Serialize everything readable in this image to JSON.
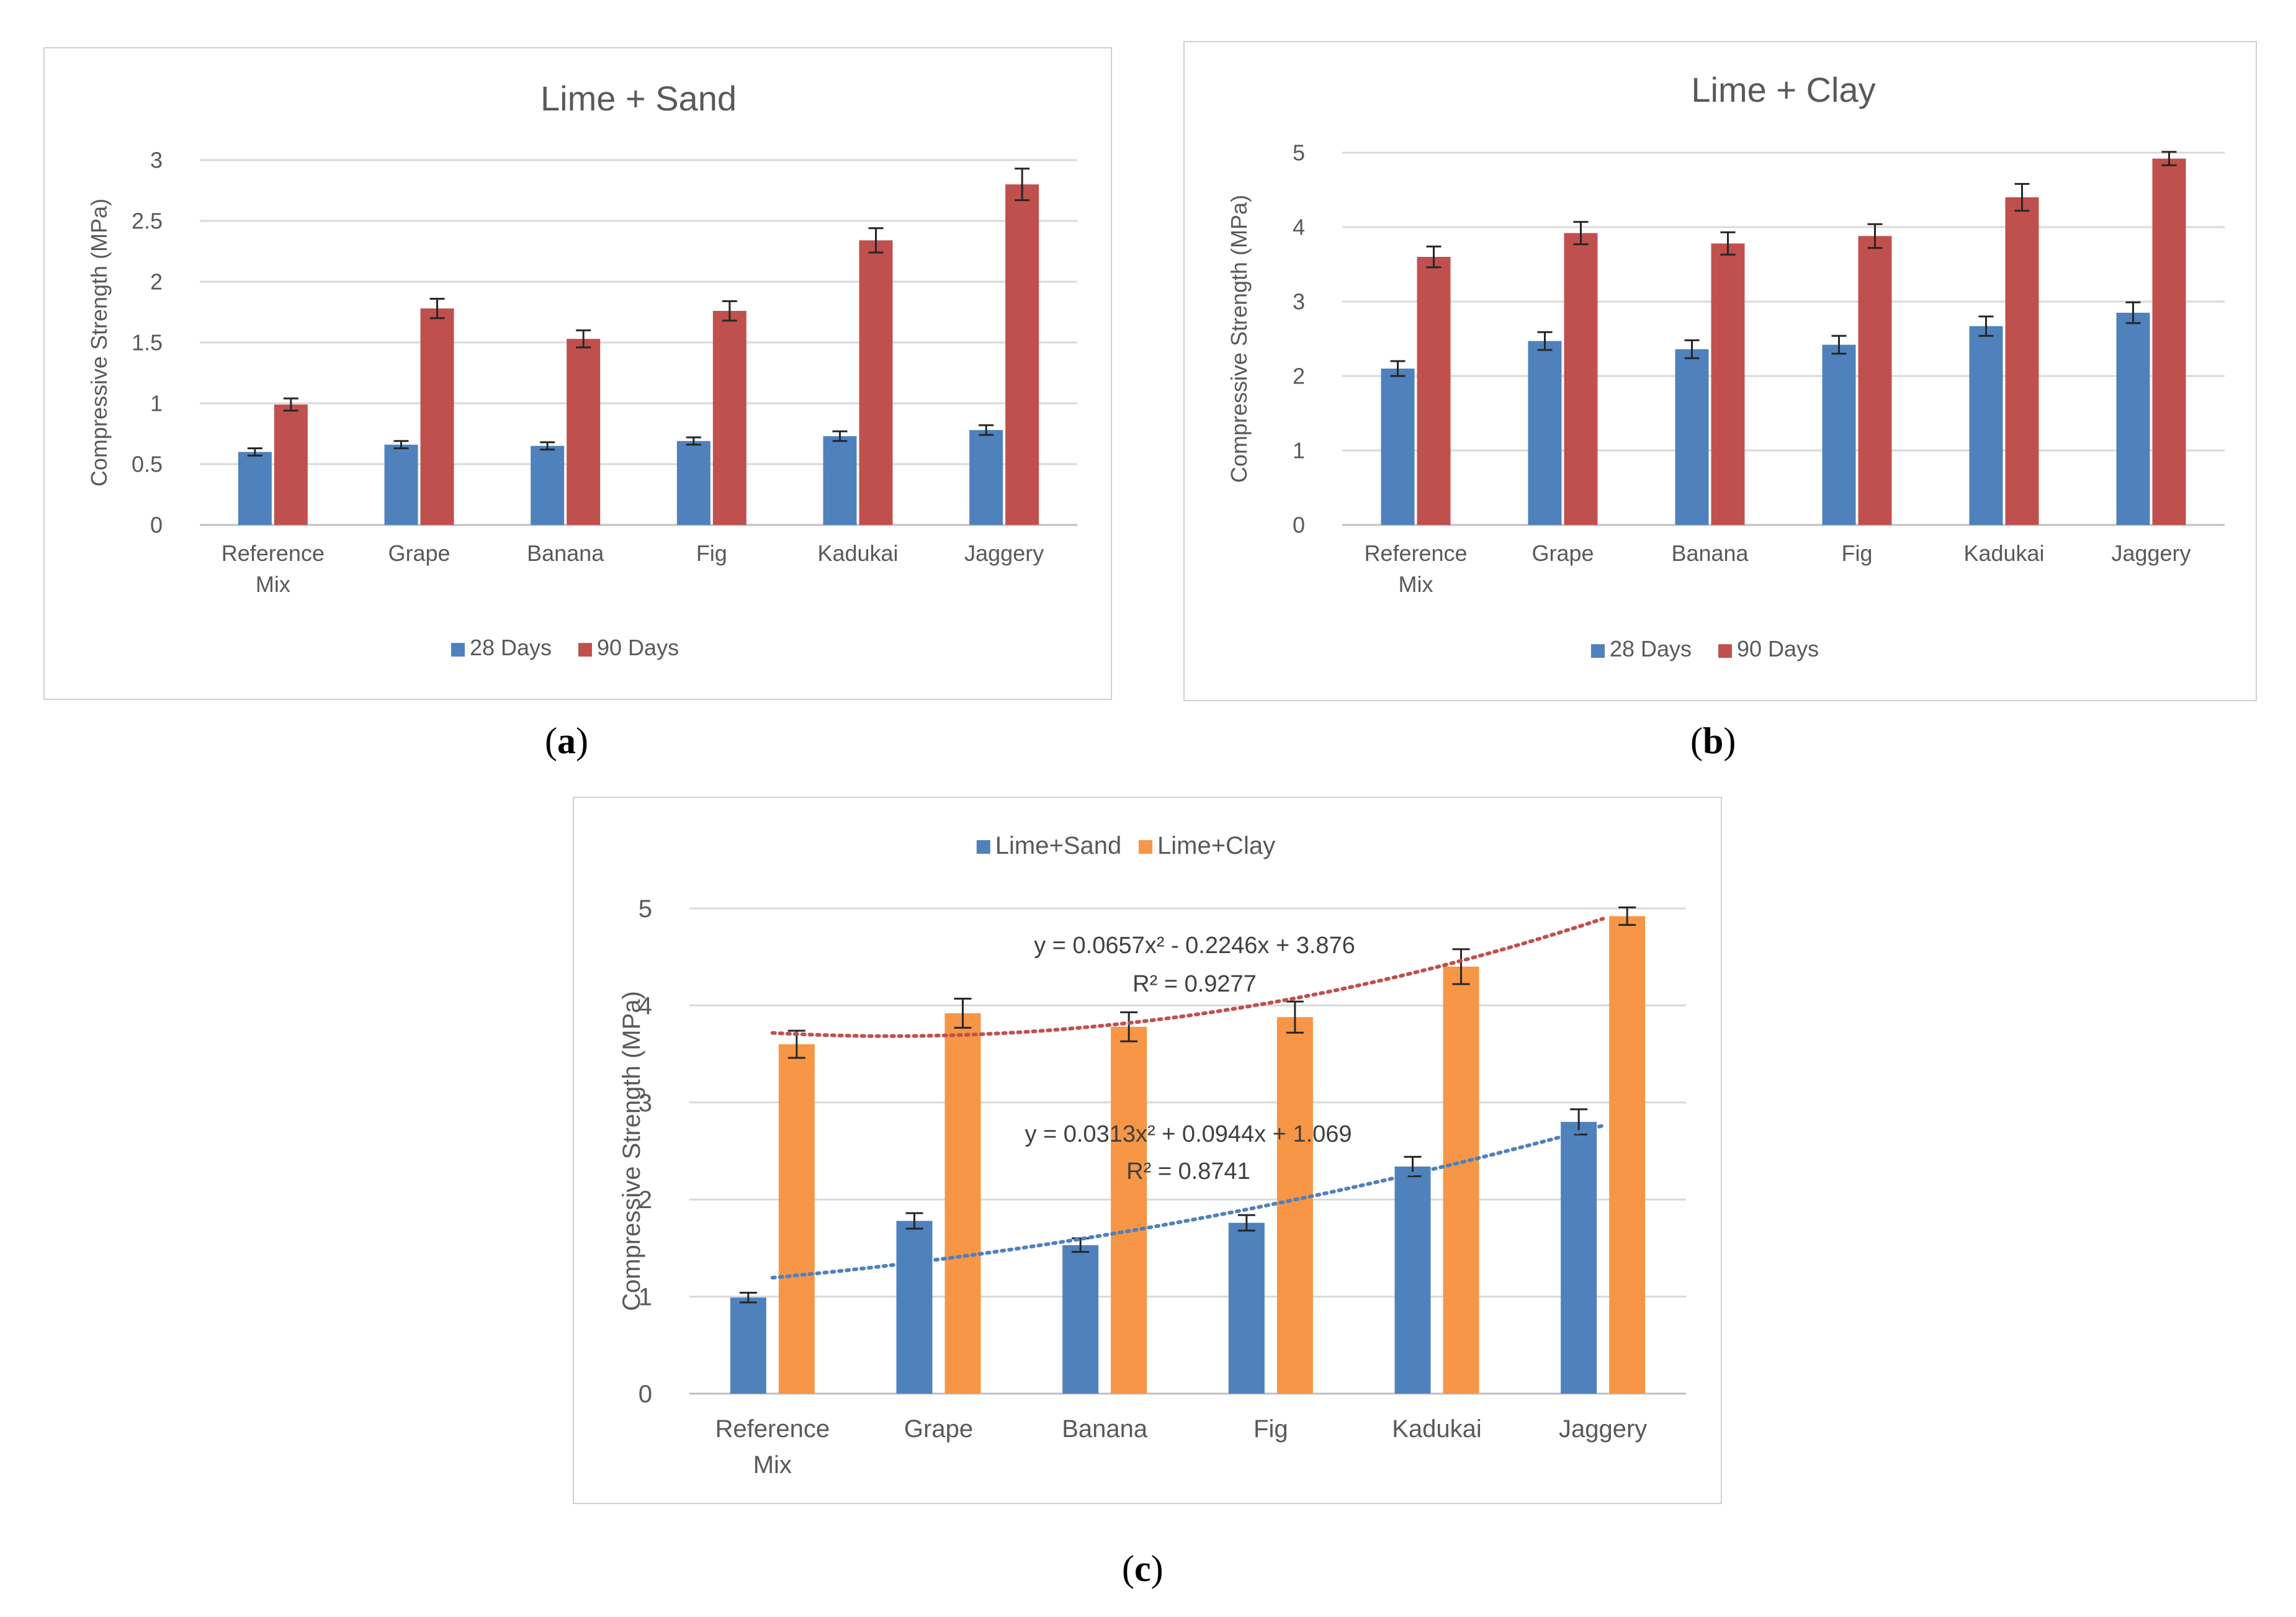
{
  "chart_data": [
    {
      "id": "a",
      "type": "bar",
      "title": "Lime + Sand",
      "xlabel": "",
      "ylabel": "Compressive Strength (MPa)",
      "categories": [
        [
          "Reference",
          "Mix"
        ],
        [
          "Grape"
        ],
        [
          "Banana"
        ],
        [
          "Fig"
        ],
        [
          "Kadukai"
        ],
        [
          "Jaggery"
        ]
      ],
      "ylim": [
        0,
        3
      ],
      "yticks": [
        0,
        0.5,
        1,
        1.5,
        2,
        2.5,
        3
      ],
      "ytick_labels": [
        "0",
        "0.5",
        "1",
        "1.5",
        "2",
        "2.5",
        "3"
      ],
      "grid": true,
      "legend_position": "bottom",
      "series": [
        {
          "name": "28 Days",
          "color": "#4f81bd",
          "values": [
            0.6,
            0.66,
            0.65,
            0.69,
            0.73,
            0.78
          ],
          "errors": [
            0.03,
            0.03,
            0.03,
            0.03,
            0.04,
            0.04
          ]
        },
        {
          "name": "90 Days",
          "color": "#c0504d",
          "values": [
            0.99,
            1.78,
            1.53,
            1.76,
            2.34,
            2.8
          ],
          "errors": [
            0.05,
            0.08,
            0.07,
            0.08,
            0.1,
            0.13
          ]
        }
      ]
    },
    {
      "id": "b",
      "type": "bar",
      "title": "Lime + Clay",
      "xlabel": "",
      "ylabel": "Compressive Strength (MPa)",
      "categories": [
        [
          "Reference",
          "Mix"
        ],
        [
          "Grape"
        ],
        [
          "Banana"
        ],
        [
          "Fig"
        ],
        [
          "Kadukai"
        ],
        [
          "Jaggery"
        ]
      ],
      "ylim": [
        0,
        5
      ],
      "yticks": [
        0,
        1,
        2,
        3,
        4,
        5
      ],
      "ytick_labels": [
        "0",
        "1",
        "2",
        "3",
        "4",
        "5"
      ],
      "grid": true,
      "legend_position": "bottom",
      "series": [
        {
          "name": "28 Days",
          "color": "#4f81bd",
          "values": [
            2.1,
            2.47,
            2.36,
            2.42,
            2.67,
            2.85
          ],
          "errors": [
            0.1,
            0.12,
            0.12,
            0.12,
            0.13,
            0.14
          ]
        },
        {
          "name": "90 Days",
          "color": "#c0504d",
          "values": [
            3.6,
            3.92,
            3.78,
            3.88,
            4.4,
            4.92
          ],
          "errors": [
            0.14,
            0.15,
            0.15,
            0.16,
            0.18,
            0.09
          ]
        }
      ]
    },
    {
      "id": "c",
      "type": "bar",
      "title": "",
      "xlabel": "",
      "ylabel": "Compressive Strength (MPa)",
      "categories": [
        [
          "Reference",
          "Mix"
        ],
        [
          "Grape"
        ],
        [
          "Banana"
        ],
        [
          "Fig"
        ],
        [
          "Kadukai"
        ],
        [
          "Jaggery"
        ]
      ],
      "ylim": [
        0,
        5
      ],
      "yticks": [
        0,
        1,
        2,
        3,
        4,
        5
      ],
      "ytick_labels": [
        "0",
        "1",
        "2",
        "3",
        "4",
        "5"
      ],
      "grid": true,
      "legend_position": "top",
      "series": [
        {
          "name": "Lime+Sand",
          "color": "#4f81bd",
          "values": [
            0.99,
            1.78,
            1.53,
            1.76,
            2.34,
            2.8
          ],
          "errors": [
            0.05,
            0.08,
            0.07,
            0.08,
            0.1,
            0.13
          ]
        },
        {
          "name": "Lime+Clay",
          "color": "#f79646",
          "values": [
            3.6,
            3.92,
            3.78,
            3.88,
            4.4,
            4.92
          ],
          "errors": [
            0.14,
            0.15,
            0.15,
            0.16,
            0.18,
            0.09
          ]
        }
      ],
      "trendlines": [
        {
          "series": "Lime+Clay",
          "color": "#c0504d",
          "a": 0.0657,
          "b": -0.2246,
          "c": 3.876,
          "equation": "y = 0.0657x² - 0.2246x + 3.876",
          "r2": "R² = 0.9277"
        },
        {
          "series": "Lime+Sand",
          "color": "#4f81bd",
          "a": 0.0313,
          "b": 0.0944,
          "c": 1.069,
          "equation": "y = 0.0313x² + 0.0944x + 1.069",
          "r2": "R² = 0.8741"
        }
      ]
    }
  ],
  "panel_labels": [
    "a",
    "b",
    "c"
  ]
}
